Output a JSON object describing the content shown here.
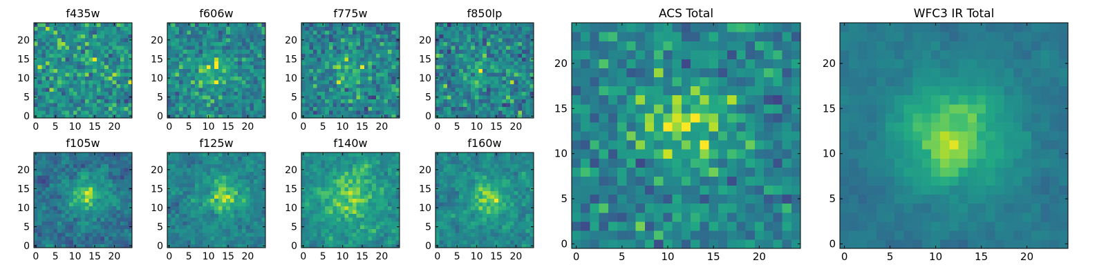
{
  "figure": {
    "colormap": "viridis",
    "palette": [
      "#440154",
      "#3b528b",
      "#21918c",
      "#5ec962",
      "#fde725"
    ],
    "background": "#ffffff"
  },
  "chart_data": [
    {
      "type": "heatmap",
      "title": "f435w",
      "grid_size": [
        25,
        25
      ],
      "xlim": [
        -0.5,
        24.5
      ],
      "ylim": [
        -0.5,
        24.5
      ],
      "xticks": [
        0,
        5,
        10,
        15,
        20
      ],
      "yticks": [
        0,
        5,
        10,
        15,
        20
      ],
      "center": [
        12,
        11
      ],
      "signal": 0.05,
      "sigma": 4.0,
      "noise": 0.22,
      "base": 0.62,
      "smooth": 0.0,
      "seed": 11,
      "grid": false,
      "legend": false
    },
    {
      "type": "heatmap",
      "title": "f606w",
      "grid_size": [
        25,
        25
      ],
      "xlim": [
        -0.5,
        24.5
      ],
      "ylim": [
        -0.5,
        24.5
      ],
      "xticks": [
        0,
        5,
        10,
        15,
        20
      ],
      "yticks": [
        0,
        5,
        10,
        15,
        20
      ],
      "center": [
        11,
        12
      ],
      "signal": 0.22,
      "sigma": 3.5,
      "noise": 0.2,
      "base": 0.58,
      "smooth": 0.0,
      "seed": 23,
      "grid": false,
      "legend": false
    },
    {
      "type": "heatmap",
      "title": "f775w",
      "grid_size": [
        25,
        25
      ],
      "xlim": [
        -0.5,
        24.5
      ],
      "ylim": [
        -0.5,
        24.5
      ],
      "xticks": [
        0,
        5,
        10,
        15,
        20
      ],
      "yticks": [
        0,
        5,
        10,
        15,
        20
      ],
      "center": [
        12,
        12
      ],
      "signal": 0.2,
      "sigma": 3.5,
      "noise": 0.22,
      "base": 0.56,
      "smooth": 0.0,
      "seed": 37,
      "grid": false,
      "legend": false
    },
    {
      "type": "heatmap",
      "title": "f850lp",
      "grid_size": [
        25,
        25
      ],
      "xlim": [
        -0.5,
        24.5
      ],
      "ylim": [
        -0.5,
        24.5
      ],
      "xticks": [
        0,
        5,
        10,
        15,
        20
      ],
      "yticks": [
        0,
        5,
        10,
        15,
        20
      ],
      "center": [
        11,
        12
      ],
      "signal": 0.16,
      "sigma": 3.5,
      "noise": 0.24,
      "base": 0.55,
      "smooth": 0.0,
      "seed": 41,
      "grid": false,
      "legend": false
    },
    {
      "type": "heatmap",
      "title": "f105w",
      "grid_size": [
        25,
        25
      ],
      "xlim": [
        -0.5,
        24.5
      ],
      "ylim": [
        -0.5,
        24.5
      ],
      "xticks": [
        0,
        5,
        10,
        15,
        20
      ],
      "yticks": [
        0,
        5,
        10,
        15,
        20
      ],
      "center": [
        13,
        13
      ],
      "signal": 0.38,
      "sigma": 3.5,
      "noise": 0.22,
      "base": 0.48,
      "smooth": 0.45,
      "seed": 53,
      "grid": false,
      "legend": false
    },
    {
      "type": "heatmap",
      "title": "f125w",
      "grid_size": [
        25,
        25
      ],
      "xlim": [
        -0.5,
        24.5
      ],
      "ylim": [
        -0.5,
        24.5
      ],
      "xticks": [
        0,
        5,
        10,
        15,
        20
      ],
      "yticks": [
        0,
        5,
        10,
        15,
        20
      ],
      "center": [
        14,
        13
      ],
      "signal": 0.3,
      "sigma": 4.0,
      "noise": 0.2,
      "base": 0.55,
      "smooth": 0.45,
      "seed": 67,
      "grid": false,
      "legend": false
    },
    {
      "type": "heatmap",
      "title": "f140w",
      "grid_size": [
        25,
        25
      ],
      "xlim": [
        -0.5,
        24.5
      ],
      "ylim": [
        -0.5,
        24.5
      ],
      "xticks": [
        0,
        5,
        10,
        15,
        20
      ],
      "yticks": [
        0,
        5,
        10,
        15,
        20
      ],
      "center": [
        12,
        13
      ],
      "signal": 0.25,
      "sigma": 5.0,
      "noise": 0.2,
      "base": 0.62,
      "smooth": 0.45,
      "seed": 79,
      "grid": false,
      "legend": false
    },
    {
      "type": "heatmap",
      "title": "f160w",
      "grid_size": [
        25,
        25
      ],
      "xlim": [
        -0.5,
        24.5
      ],
      "ylim": [
        -0.5,
        24.5
      ],
      "xticks": [
        0,
        5,
        10,
        15,
        20
      ],
      "yticks": [
        0,
        5,
        10,
        15,
        20
      ],
      "center": [
        13,
        12
      ],
      "signal": 0.35,
      "sigma": 3.5,
      "noise": 0.2,
      "base": 0.58,
      "smooth": 0.45,
      "seed": 83,
      "grid": false,
      "legend": false
    },
    {
      "type": "heatmap",
      "title": "ACS Total",
      "grid_size": [
        25,
        25
      ],
      "xlim": [
        -0.5,
        24.5
      ],
      "ylim": [
        -0.5,
        24.5
      ],
      "xticks": [
        0,
        5,
        10,
        15,
        20
      ],
      "yticks": [
        0,
        5,
        10,
        15,
        20
      ],
      "center": [
        12,
        13
      ],
      "signal": 0.3,
      "sigma": 3.8,
      "noise": 0.2,
      "base": 0.56,
      "smooth": 0.0,
      "seed": 97,
      "grid": false,
      "legend": false
    },
    {
      "type": "heatmap",
      "title": "WFC3 IR Total",
      "grid_size": [
        25,
        25
      ],
      "xlim": [
        -0.5,
        24.5
      ],
      "ylim": [
        -0.5,
        24.5
      ],
      "xticks": [
        0,
        5,
        10,
        15,
        20
      ],
      "yticks": [
        0,
        5,
        10,
        15,
        20
      ],
      "center": [
        12,
        12
      ],
      "signal": 0.4,
      "sigma": 4.5,
      "noise": 0.12,
      "base": 0.5,
      "smooth": 0.6,
      "seed": 101,
      "grid": false,
      "legend": false
    }
  ]
}
